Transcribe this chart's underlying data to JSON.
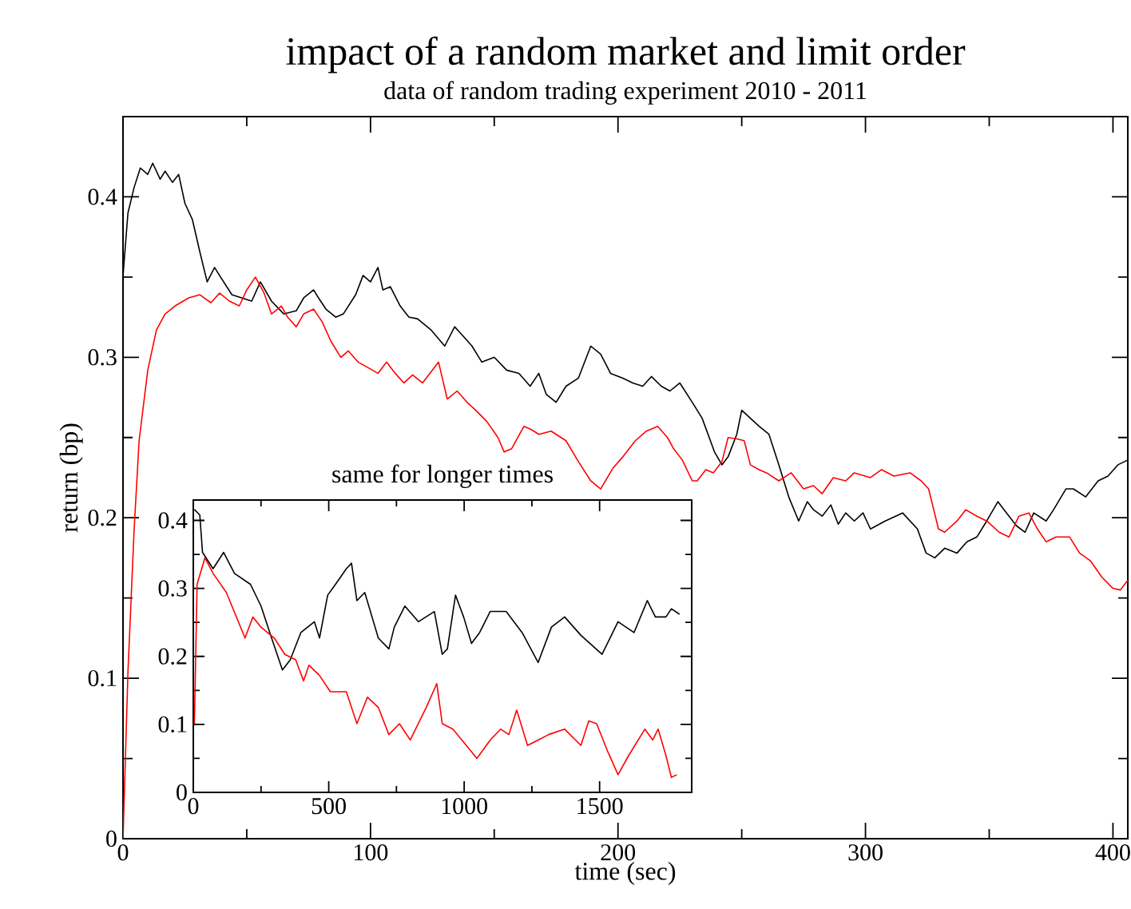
{
  "chart_data": [
    {
      "type": "line",
      "title": "impact of a random market and limit order",
      "subtitle": "data of random trading experiment 2010 - 2011",
      "xlabel": "time (sec)",
      "ylabel": "return (bp)",
      "xlim": [
        0,
        406
      ],
      "ylim": [
        0,
        0.45
      ],
      "xticks": [
        0,
        100,
        200,
        300,
        400
      ],
      "yticks": [
        0,
        0.1,
        0.2,
        0.3,
        0.4
      ],
      "series": [
        {
          "color": "#000000",
          "x": [
            0,
            2,
            4.5,
            7,
            10,
            12,
            15,
            17,
            20,
            22.5,
            25,
            28,
            31,
            34,
            37,
            39,
            44,
            48,
            52,
            55.5,
            60,
            65,
            70,
            73,
            77,
            79,
            82,
            86,
            89,
            94,
            97,
            100,
            103,
            105,
            108,
            112,
            115.5,
            119,
            124.5,
            130,
            134,
            137,
            141,
            145,
            150,
            155,
            160,
            164.5,
            168,
            171,
            175,
            179,
            184,
            189,
            193,
            197,
            202,
            206,
            210,
            213.5,
            217.5,
            221,
            225,
            230,
            234,
            239,
            242,
            244.5,
            248,
            250,
            253.5,
            257,
            261,
            265,
            269,
            273,
            276.5,
            279,
            282.5,
            286,
            289,
            292,
            295.5,
            299,
            302,
            308,
            315,
            321,
            324.5,
            328,
            332,
            337,
            341,
            345,
            349,
            353.5,
            357,
            361,
            364.5,
            368,
            373,
            376,
            381,
            384,
            389,
            394,
            398,
            402,
            406
          ],
          "values": [
            0.351,
            0.39,
            0.406,
            0.418,
            0.414,
            0.421,
            0.411,
            0.416,
            0.409,
            0.414,
            0.396,
            0.386,
            0.366,
            0.347,
            0.356,
            0.351,
            0.339,
            0.337,
            0.335,
            0.347,
            0.335,
            0.327,
            0.329,
            0.337,
            0.342,
            0.337,
            0.33,
            0.325,
            0.327,
            0.339,
            0.351,
            0.347,
            0.356,
            0.342,
            0.344,
            0.332,
            0.325,
            0.324,
            0.317,
            0.307,
            0.319,
            0.314,
            0.307,
            0.297,
            0.3,
            0.292,
            0.29,
            0.282,
            0.29,
            0.277,
            0.272,
            0.282,
            0.287,
            0.307,
            0.302,
            0.29,
            0.287,
            0.284,
            0.282,
            0.288,
            0.282,
            0.279,
            0.284,
            0.272,
            0.262,
            0.241,
            0.233,
            0.238,
            0.252,
            0.267,
            0.262,
            0.257,
            0.252,
            0.233,
            0.213,
            0.198,
            0.21,
            0.205,
            0.201,
            0.208,
            0.196,
            0.203,
            0.198,
            0.203,
            0.193,
            0.198,
            0.203,
            0.193,
            0.178,
            0.175,
            0.181,
            0.178,
            0.185,
            0.188,
            0.198,
            0.21,
            0.203,
            0.195,
            0.191,
            0.203,
            0.198,
            0.205,
            0.218,
            0.218,
            0.213,
            0.223,
            0.226,
            0.233,
            0.236
          ]
        },
        {
          "color": "#ff0000",
          "x": [
            0,
            2,
            4.5,
            6.5,
            10,
            13.5,
            17,
            21,
            26.5,
            31,
            35.5,
            39,
            43,
            47,
            50,
            53.5,
            57,
            60,
            64,
            66.5,
            70,
            73,
            77,
            80.5,
            84,
            88,
            91,
            95,
            98.5,
            103,
            106.5,
            110,
            113.5,
            117,
            121,
            127.5,
            131,
            135,
            139,
            142.5,
            147,
            151.5,
            154,
            157,
            162,
            165,
            168,
            173,
            179,
            184,
            189,
            193,
            198,
            202,
            207,
            211.5,
            216,
            220,
            222.5,
            226,
            230,
            232,
            235.5,
            238.5,
            242,
            244.5,
            248.5,
            251,
            253.5,
            257,
            260,
            265,
            270,
            275,
            279,
            282.5,
            287,
            292,
            295.5,
            302,
            306.5,
            311.5,
            318,
            322.5,
            325.5,
            329.5,
            332,
            337,
            340.5,
            345,
            349,
            354,
            358,
            362,
            366,
            369.5,
            373,
            377,
            382.5,
            386.5,
            391,
            395.5,
            400,
            403,
            406
          ],
          "values": [
            0,
            0.104,
            0.193,
            0.248,
            0.292,
            0.317,
            0.327,
            0.332,
            0.337,
            0.339,
            0.334,
            0.34,
            0.335,
            0.332,
            0.342,
            0.35,
            0.34,
            0.327,
            0.332,
            0.325,
            0.319,
            0.327,
            0.33,
            0.322,
            0.31,
            0.3,
            0.304,
            0.297,
            0.294,
            0.29,
            0.297,
            0.29,
            0.284,
            0.289,
            0.284,
            0.297,
            0.274,
            0.279,
            0.272,
            0.267,
            0.26,
            0.25,
            0.241,
            0.243,
            0.257,
            0.255,
            0.252,
            0.254,
            0.248,
            0.235,
            0.223,
            0.218,
            0.231,
            0.238,
            0.248,
            0.254,
            0.257,
            0.25,
            0.243,
            0.236,
            0.223,
            0.223,
            0.23,
            0.228,
            0.235,
            0.25,
            0.249,
            0.248,
            0.233,
            0.23,
            0.228,
            0.223,
            0.228,
            0.218,
            0.22,
            0.215,
            0.225,
            0.223,
            0.228,
            0.225,
            0.23,
            0.226,
            0.228,
            0.223,
            0.218,
            0.193,
            0.191,
            0.198,
            0.205,
            0.201,
            0.198,
            0.191,
            0.188,
            0.201,
            0.203,
            0.193,
            0.185,
            0.188,
            0.188,
            0.178,
            0.173,
            0.163,
            0.156,
            0.155,
            0.161
          ]
        }
      ]
    },
    {
      "type": "line",
      "title": "same for longer times",
      "xlim": [
        0,
        1840
      ],
      "ylim": [
        0,
        0.43
      ],
      "xticks": [
        0,
        500,
        1000,
        1500
      ],
      "yticks": [
        0,
        0.1,
        0.2,
        0.3,
        0.4
      ],
      "series": [
        {
          "color": "#000000",
          "x": [
            4,
            24,
            34,
            73,
            112,
            152,
            211,
            250,
            289,
            329,
            358,
            397,
            447,
            466,
            496,
            525,
            565,
            584,
            604,
            633,
            683,
            722,
            742,
            781,
            831,
            890,
            919,
            938,
            968,
            998,
            1027,
            1057,
            1096,
            1155,
            1214,
            1273,
            1322,
            1371,
            1431,
            1509,
            1568,
            1627,
            1676,
            1706,
            1745,
            1765,
            1795
          ],
          "values": [
            0.416,
            0.408,
            0.353,
            0.329,
            0.353,
            0.322,
            0.306,
            0.274,
            0.227,
            0.18,
            0.195,
            0.235,
            0.251,
            0.227,
            0.29,
            0.306,
            0.329,
            0.337,
            0.282,
            0.294,
            0.227,
            0.211,
            0.243,
            0.274,
            0.251,
            0.266,
            0.203,
            0.211,
            0.29,
            0.258,
            0.219,
            0.235,
            0.266,
            0.266,
            0.235,
            0.191,
            0.243,
            0.258,
            0.231,
            0.203,
            0.251,
            0.235,
            0.282,
            0.258,
            0.258,
            0.27,
            0.262
          ]
        },
        {
          "color": "#ff0000",
          "x": [
            4,
            14,
            43,
            73,
            122,
            191,
            220,
            250,
            299,
            338,
            378,
            407,
            427,
            466,
            506,
            565,
            604,
            643,
            683,
            722,
            761,
            801,
            860,
            899,
            919,
            958,
            1008,
            1047,
            1096,
            1135,
            1165,
            1194,
            1234,
            1273,
            1312,
            1371,
            1431,
            1460,
            1489,
            1529,
            1568,
            1607,
            1667,
            1696,
            1716,
            1745,
            1765,
            1785
          ],
          "values": [
            0.101,
            0.306,
            0.345,
            0.322,
            0.294,
            0.227,
            0.258,
            0.243,
            0.227,
            0.203,
            0.195,
            0.164,
            0.187,
            0.172,
            0.148,
            0.148,
            0.101,
            0.14,
            0.125,
            0.085,
            0.101,
            0.077,
            0.125,
            0.16,
            0.101,
            0.093,
            0.069,
            0.05,
            0.077,
            0.093,
            0.085,
            0.121,
            0.069,
            0.077,
            0.085,
            0.093,
            0.069,
            0.105,
            0.101,
            0.061,
            0.026,
            0.054,
            0.093,
            0.077,
            0.093,
            0.054,
            0.022,
            0.026
          ]
        }
      ]
    }
  ]
}
